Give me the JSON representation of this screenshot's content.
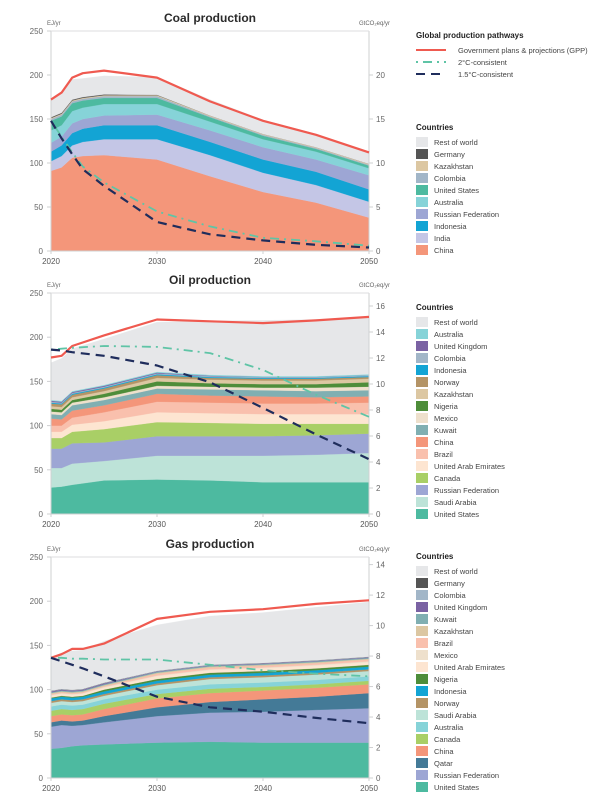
{
  "pathways_legend": {
    "title": "Global production pathways",
    "items": [
      {
        "label": "Government plans & projections (GPP)",
        "color": "#ef5a50",
        "style": "solid"
      },
      {
        "label": "2°C-consistent",
        "color": "#5fc4a6",
        "style": "dashdot"
      },
      {
        "label": "1.5°C-consistent",
        "color": "#1f2d5c",
        "style": "dashed"
      }
    ]
  },
  "chart_data": [
    {
      "type": "area",
      "title": "Coal production",
      "ylabel": "EJ/yr",
      "y2label": "GtCO₂eq/yr",
      "x": [
        2020,
        2021,
        2022,
        2023,
        2025,
        2030,
        2035,
        2040,
        2045,
        2050
      ],
      "xticks": [
        "2020",
        "2030",
        "2040",
        "2050"
      ],
      "ylim": [
        0,
        250
      ],
      "yticks": [
        "0",
        "50",
        "100",
        "150",
        "200",
        "250"
      ],
      "y2lim": [
        0,
        25
      ],
      "y2ticks": [
        "0",
        "5",
        "10",
        "15",
        "20"
      ],
      "legend_title": "Countries",
      "stack_order": "bottom-to-top",
      "series": [
        {
          "name": "China",
          "color": "#f4967a",
          "values": [
            91,
            95,
            106,
            108,
            109,
            104,
            85,
            67,
            55,
            38
          ]
        },
        {
          "name": "India",
          "color": "#c4c6e6",
          "values": [
            11,
            13,
            14,
            16,
            18,
            23,
            24,
            22,
            20,
            18
          ]
        },
        {
          "name": "Indonesia",
          "color": "#13a4d4",
          "values": [
            11,
            12,
            14,
            15,
            16,
            16,
            15,
            15,
            15,
            14
          ]
        },
        {
          "name": "Russian Federation",
          "color": "#9da6d4",
          "values": [
            10,
            10,
            11,
            11,
            11,
            12,
            13,
            14,
            14,
            16
          ]
        },
        {
          "name": "Australia",
          "color": "#86d3d8",
          "values": [
            14,
            13,
            14,
            13,
            13,
            12,
            10,
            9,
            9,
            8
          ]
        },
        {
          "name": "United States",
          "color": "#4dbaa0",
          "values": [
            11,
            10,
            9,
            8,
            7,
            7,
            5,
            4,
            3,
            3
          ]
        },
        {
          "name": "Colombia",
          "color": "#a2b6c8",
          "values": [
            2,
            2,
            2,
            2,
            2,
            2,
            1,
            1,
            1,
            1
          ]
        },
        {
          "name": "Kazakhstan",
          "color": "#dcc7a2",
          "values": [
            1,
            1,
            1,
            1,
            1,
            1,
            1,
            1,
            1,
            1
          ]
        },
        {
          "name": "Germany",
          "color": "#555555",
          "values": [
            1,
            1,
            1,
            1,
            1,
            0.5,
            0,
            0,
            0,
            0
          ]
        },
        {
          "name": "Rest of world",
          "color": "#e6e7e9",
          "values": [
            21,
            23,
            23,
            21,
            21,
            20,
            18,
            16,
            15,
            13
          ]
        }
      ],
      "lines": [
        {
          "name": "Government plans & projections (GPP)",
          "values": [
            172,
            180,
            197,
            202,
            205,
            197,
            170,
            148,
            132,
            112
          ]
        },
        {
          "name": "2°C-consistent",
          "values": [
            148,
            130,
            112,
            96,
            78,
            45,
            28,
            15,
            11,
            6
          ]
        },
        {
          "name": "1.5°C-consistent",
          "values": [
            148,
            128,
            110,
            93,
            74,
            33,
            19,
            12,
            7,
            4
          ]
        }
      ]
    },
    {
      "type": "area",
      "title": "Oil production",
      "ylabel": "EJ/yr",
      "y2label": "GtCO₂eq/yr",
      "x": [
        2020,
        2021,
        2022,
        2025,
        2030,
        2035,
        2040,
        2045,
        2050
      ],
      "xticks": [
        "2020",
        "2030",
        "2040",
        "2050"
      ],
      "ylim": [
        0,
        250
      ],
      "yticks": [
        "0",
        "50",
        "100",
        "150",
        "200",
        "250"
      ],
      "y2lim": [
        0,
        17
      ],
      "y2ticks": [
        "0",
        "2",
        "4",
        "6",
        "8",
        "10",
        "12",
        "14",
        "16"
      ],
      "legend_title": "Countries",
      "stack_order": "bottom-to-top",
      "series": [
        {
          "name": "United States",
          "color": "#4dbaa0",
          "values": [
            30,
            31,
            33,
            38,
            39,
            38,
            36,
            36,
            36
          ]
        },
        {
          "name": "Saudi Arabia",
          "color": "#bde3d8",
          "values": [
            22,
            21,
            24,
            22,
            27,
            28,
            30,
            31,
            33
          ]
        },
        {
          "name": "Russian Federation",
          "color": "#9da6d4",
          "values": [
            22,
            22,
            23,
            21,
            22,
            22,
            22,
            22,
            22
          ]
        },
        {
          "name": "Canada",
          "color": "#a9cf66",
          "values": [
            12,
            12,
            13,
            15,
            16,
            15,
            14,
            13,
            11
          ]
        },
        {
          "name": "United Arab Emirates",
          "color": "#fde5d1",
          "values": [
            7,
            7,
            8,
            9,
            11,
            11,
            11,
            11,
            11
          ]
        },
        {
          "name": "Brazil",
          "color": "#f9c0ad",
          "values": [
            7,
            7,
            8,
            10,
            12,
            12,
            12,
            12,
            13
          ]
        },
        {
          "name": "China",
          "color": "#f4967a",
          "values": [
            8,
            7,
            8,
            8,
            9,
            8,
            8,
            7,
            7
          ]
        },
        {
          "name": "Kuwait",
          "color": "#80afb2",
          "values": [
            5,
            5,
            6,
            6,
            6,
            7,
            7,
            7,
            7
          ]
        },
        {
          "name": "Mexico",
          "color": "#eee0cc",
          "values": [
            3,
            3,
            3,
            3,
            3,
            3,
            3,
            4,
            4
          ]
        },
        {
          "name": "Nigeria",
          "color": "#4e8d3a",
          "values": [
            3,
            3,
            3,
            4,
            5,
            4,
            4,
            4,
            5
          ]
        },
        {
          "name": "Kazakhstan",
          "color": "#dcc7a2",
          "values": [
            3,
            3,
            3,
            3,
            4,
            4,
            4,
            4,
            4
          ]
        },
        {
          "name": "Norway",
          "color": "#b49466",
          "values": [
            3,
            3,
            3,
            3,
            3,
            2,
            2,
            2,
            2
          ]
        },
        {
          "name": "Indonesia",
          "color": "#13a4d4",
          "values": [
            1,
            1,
            1,
            1,
            1,
            1,
            1,
            1,
            1
          ]
        },
        {
          "name": "Colombia",
          "color": "#a2b6c8",
          "values": [
            1,
            1,
            1,
            1,
            1,
            1,
            1,
            1,
            1
          ]
        },
        {
          "name": "United Kingdom",
          "color": "#7a62a3",
          "values": [
            1,
            1,
            1,
            1,
            1,
            0.5,
            0,
            0,
            0
          ]
        },
        {
          "name": "Australia",
          "color": "#86d3d8",
          "values": [
            1,
            1,
            1,
            1,
            1,
            1,
            1,
            1,
            1
          ]
        },
        {
          "name": "Rest of world",
          "color": "#e6e7e9",
          "values": [
            42,
            48,
            48,
            52,
            56,
            61,
            63,
            64,
            65
          ]
        }
      ],
      "lines": [
        {
          "name": "Government plans & projections (GPP)",
          "values": [
            177,
            179,
            190,
            202,
            220,
            218,
            216,
            219,
            223
          ]
        },
        {
          "name": "2°C-consistent",
          "values": [
            186,
            187,
            188,
            190,
            189,
            182,
            163,
            135,
            110
          ]
        },
        {
          "name": "1.5°C-consistent",
          "values": [
            186,
            185,
            183,
            179,
            168,
            149,
            120,
            90,
            62
          ]
        }
      ]
    },
    {
      "type": "area",
      "title": "Gas production",
      "ylabel": "EJ/yr",
      "y2label": "GtCO₂eq/yr",
      "x": [
        2020,
        2021,
        2022,
        2023,
        2025,
        2030,
        2035,
        2040,
        2045,
        2050
      ],
      "xticks": [
        "2020",
        "2030",
        "2040",
        "2050"
      ],
      "ylim": [
        0,
        250
      ],
      "yticks": [
        "0",
        "50",
        "100",
        "150",
        "200",
        "250"
      ],
      "y2lim": [
        0,
        14.5
      ],
      "y2ticks": [
        "0",
        "2",
        "4",
        "6",
        "8",
        "10",
        "12",
        "14"
      ],
      "legend_title": "Countries",
      "stack_order": "bottom-to-top",
      "series": [
        {
          "name": "United States",
          "color": "#4dbaa0",
          "values": [
            33,
            34,
            36,
            37,
            38,
            40,
            41,
            40,
            40,
            40
          ]
        },
        {
          "name": "Russian Federation",
          "color": "#9da6d4",
          "values": [
            25,
            26,
            23,
            23,
            25,
            30,
            33,
            35,
            37,
            39
          ]
        },
        {
          "name": "Qatar",
          "color": "#447a97",
          "values": [
            5,
            5,
            5,
            5,
            7,
            10,
            12,
            14,
            15,
            17
          ]
        },
        {
          "name": "China",
          "color": "#f4967a",
          "values": [
            7,
            7,
            7,
            7,
            8,
            10,
            10,
            10,
            10,
            10
          ]
        },
        {
          "name": "Canada",
          "color": "#a9cf66",
          "values": [
            6,
            6,
            6,
            6,
            6,
            5,
            5,
            4,
            4,
            4
          ]
        },
        {
          "name": "Australia",
          "color": "#86d3d8",
          "values": [
            5,
            5,
            5,
            5,
            5,
            5,
            5,
            5,
            5,
            5
          ]
        },
        {
          "name": "Saudi Arabia",
          "color": "#bde3d8",
          "values": [
            4,
            4,
            4,
            4,
            4,
            5,
            6,
            6,
            6,
            6
          ]
        },
        {
          "name": "Norway",
          "color": "#b49466",
          "values": [
            2,
            2,
            2,
            2,
            2,
            2,
            2,
            2,
            2,
            2
          ]
        },
        {
          "name": "Indonesia",
          "color": "#13a4d4",
          "values": [
            3,
            3,
            3,
            3,
            3,
            3,
            3,
            3,
            3,
            3
          ]
        },
        {
          "name": "Nigeria",
          "color": "#4e8d3a",
          "values": [
            1,
            1,
            1,
            1,
            2,
            2,
            2,
            2,
            2,
            2
          ]
        },
        {
          "name": "United Arab Emirates",
          "color": "#fde5d1",
          "values": [
            2,
            2,
            2,
            2,
            2,
            3,
            3,
            3,
            3,
            3
          ]
        },
        {
          "name": "Mexico",
          "color": "#eee0cc",
          "values": [
            1,
            1,
            1,
            1,
            1,
            1,
            1,
            1,
            1,
            1
          ]
        },
        {
          "name": "Brazil",
          "color": "#f9c0ad",
          "values": [
            1,
            1,
            1,
            1,
            1,
            2,
            2,
            2,
            2,
            2
          ]
        },
        {
          "name": "Kazakhstan",
          "color": "#dcc7a2",
          "values": [
            1,
            1,
            1,
            1,
            1,
            1,
            1,
            1,
            1,
            1
          ]
        },
        {
          "name": "Kuwait",
          "color": "#80afb2",
          "values": [
            1,
            1,
            1,
            1,
            1,
            1,
            1,
            1,
            1,
            1
          ]
        },
        {
          "name": "United Kingdom",
          "color": "#7a62a3",
          "values": [
            1,
            1,
            1,
            1,
            1,
            0.5,
            0.5,
            0.5,
            0.5,
            0.5
          ]
        },
        {
          "name": "Colombia",
          "color": "#a2b6c8",
          "values": [
            0.5,
            0.5,
            0.5,
            0.5,
            0.5,
            0.5,
            0.5,
            0.5,
            0.5,
            0.5
          ]
        },
        {
          "name": "Germany",
          "color": "#555555",
          "values": [
            0.2,
            0.2,
            0.2,
            0.2,
            0.2,
            0.1,
            0.1,
            0.1,
            0.1,
            0.1
          ]
        },
        {
          "name": "Rest of world",
          "color": "#e6e7e9",
          "values": [
            37,
            41,
            44,
            44,
            47,
            52,
            55,
            57,
            60,
            62
          ]
        }
      ],
      "lines": [
        {
          "name": "Government plans & projections (GPP)",
          "values": [
            136,
            140,
            146,
            146,
            152,
            180,
            188,
            191,
            197,
            201
          ]
        },
        {
          "name": "2°C-consistent",
          "values": [
            136,
            136,
            135,
            135,
            134,
            134,
            128,
            122,
            118,
            115
          ]
        },
        {
          "name": "1.5°C-consistent",
          "values": [
            136,
            132,
            128,
            124,
            115,
            92,
            80,
            75,
            68,
            62
          ]
        }
      ]
    }
  ]
}
